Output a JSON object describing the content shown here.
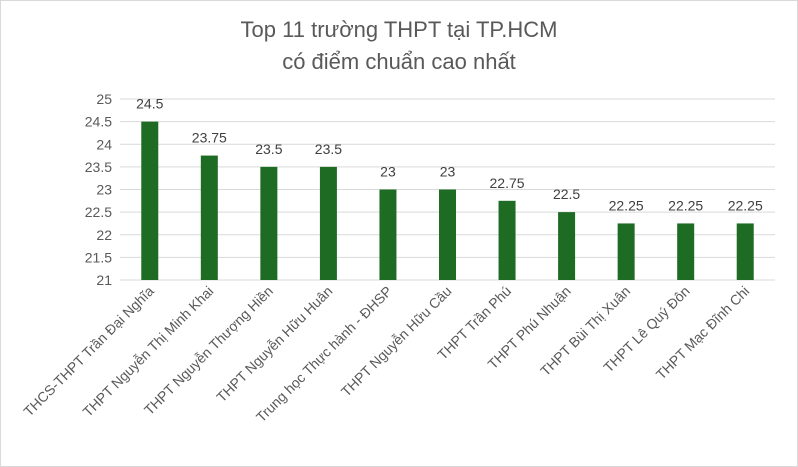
{
  "chart_data": {
    "type": "bar",
    "title": [
      "Top 11 trường THPT tại TP.HCM",
      "có điểm chuẩn cao nhất"
    ],
    "categories": [
      "THCS-THPT Trần Đại Nghĩa",
      "THPT Nguyễn Thị Minh Khai",
      "THPT Nguyễn Thượng Hiền",
      "THPT Nguyễn Hữu Huân",
      "Trung học Thực hành - ĐHSP",
      "THPT Nguyễn Hữu Cầu",
      "THPT Trần Phú",
      "THPT Phú Nhuận",
      "THPT Bùi Thị Xuân",
      "THPT Lê Quý Đôn",
      "THPT Mạc Đĩnh Chi"
    ],
    "values": [
      24.5,
      23.75,
      23.5,
      23.5,
      23,
      23,
      22.75,
      22.5,
      22.25,
      22.25,
      22.25
    ],
    "data_labels": [
      "24.5",
      "23.75",
      "23.5",
      "23.5",
      "23",
      "23",
      "22.75",
      "22.5",
      "22.25",
      "22.25",
      "22.25"
    ],
    "ylim": [
      21,
      25
    ],
    "y_ticks": [
      "21",
      "21.5",
      "22",
      "22.5",
      "23",
      "23.5",
      "24",
      "24.5",
      "25"
    ],
    "xlabel": "",
    "ylabel": "",
    "grid": true,
    "bar_color": "#1e6b24",
    "grid_color": "#d9d9d9"
  }
}
